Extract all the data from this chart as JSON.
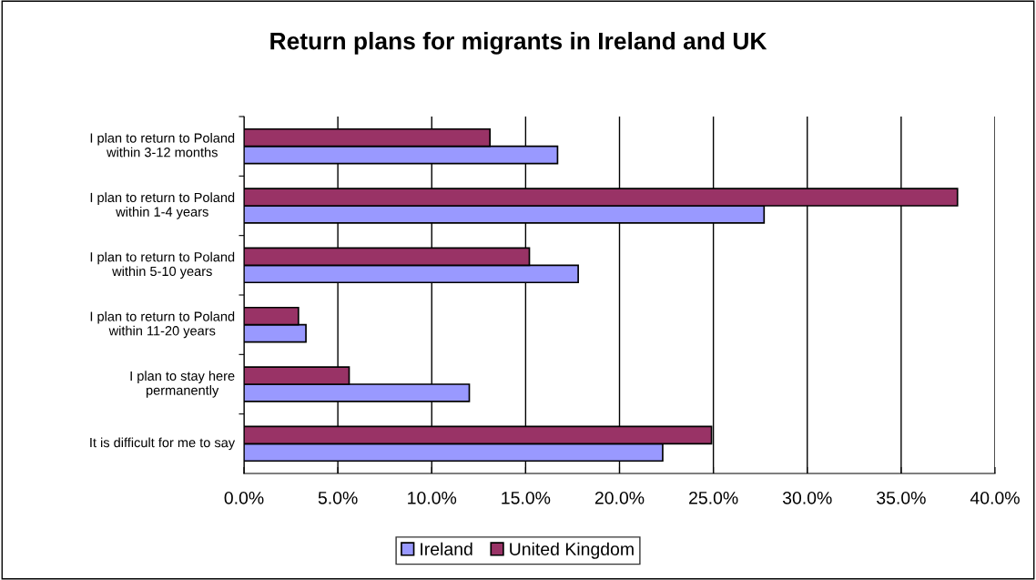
{
  "chart_data": {
    "type": "bar",
    "orientation": "horizontal",
    "title": "Return plans for migrants in Ireland and UK",
    "categories": [
      "I plan to return to Poland\nwithin 3-12 months",
      "I plan to return to Poland\nwithin 1-4 years",
      "I plan to return to Poland\nwithin 5-10 years",
      "I plan to return to Poland\nwithin 11-20 years",
      "I plan to stay here\npermanently",
      "It is difficult for me to say"
    ],
    "series": [
      {
        "name": "Ireland",
        "color": "#9999ff",
        "values": [
          16.7,
          27.7,
          17.8,
          3.3,
          12.0,
          22.3
        ]
      },
      {
        "name": "United Kingdom",
        "color": "#993366",
        "values": [
          13.1,
          38.0,
          15.2,
          2.9,
          5.6,
          24.9
        ]
      }
    ],
    "xlim": [
      0,
      40
    ],
    "xticks": [
      {
        "value": 0,
        "label": "0.0%"
      },
      {
        "value": 5,
        "label": "5.0%"
      },
      {
        "value": 10,
        "label": "10.0%"
      },
      {
        "value": 15,
        "label": "15.0%"
      },
      {
        "value": 20,
        "label": "20.0%"
      },
      {
        "value": 25,
        "label": "25.0%"
      },
      {
        "value": 30,
        "label": "30.0%"
      },
      {
        "value": 35,
        "label": "35.0%"
      },
      {
        "value": 40,
        "label": "40.0%"
      }
    ],
    "grid": "x",
    "legend": "bottom"
  }
}
